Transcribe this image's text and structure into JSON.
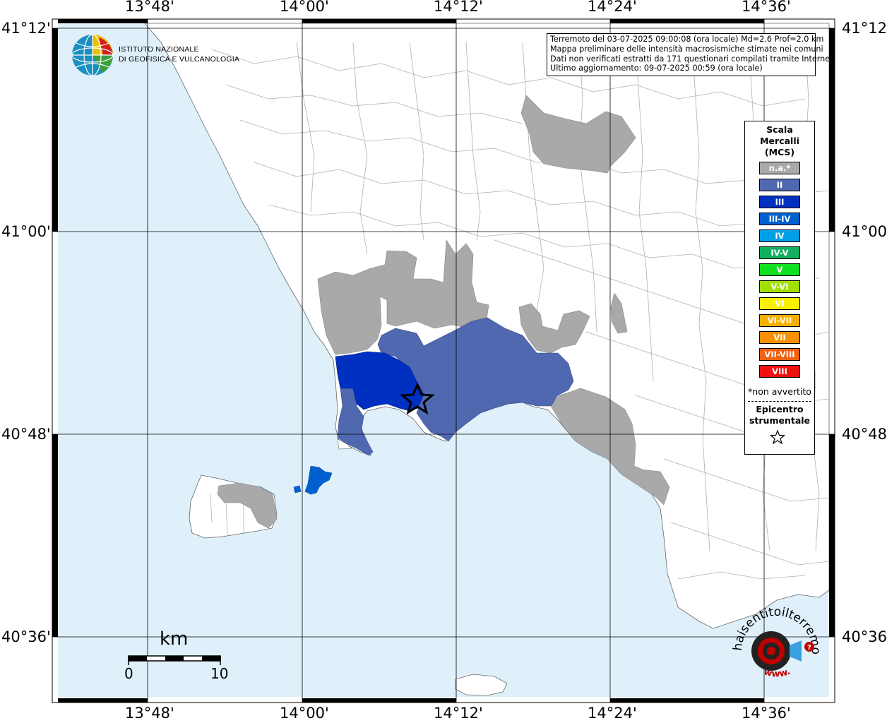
{
  "map": {
    "lon_labels": [
      "13°48'",
      "14°00'",
      "14°12'",
      "14°24'",
      "14°36'"
    ],
    "lat_labels": [
      "41°12'",
      "41°00'",
      "40°48'",
      "40°36'"
    ]
  },
  "info": {
    "line1": "Terremoto del 03-07-2025 09:00:08 (ora locale) Md=2.6 Prof=2.0 km",
    "line2": "Mappa preliminare delle intensità macrosismiche stimate nei comuni",
    "line3": "Dati non verificati estratti da 171 questionari compilati tramite Internet.",
    "line4": "Ultimo aggiornamento: 09-07-2025 00:59 (ora locale)"
  },
  "logo": {
    "line1": "ISTITUTO NAZIONALE",
    "line2": "DI GEOFISICA E VULCANOLOGIA"
  },
  "legend": {
    "title1": "Scala",
    "title2": "Mercalli",
    "title3": "(MCS)",
    "items": [
      {
        "label": "n.a.*",
        "color": "#a9a9a9"
      },
      {
        "label": "II",
        "color": "#5068b0"
      },
      {
        "label": "III",
        "color": "#0030c0"
      },
      {
        "label": "III-IV",
        "color": "#0060d0"
      },
      {
        "label": "IV",
        "color": "#00a0e8"
      },
      {
        "label": "IV-V",
        "color": "#10b060"
      },
      {
        "label": "V",
        "color": "#10e020"
      },
      {
        "label": "V-VI",
        "color": "#a0e000"
      },
      {
        "label": "VI",
        "color": "#f8f000"
      },
      {
        "label": "VI-VII",
        "color": "#f8b000"
      },
      {
        "label": "VII",
        "color": "#f89000"
      },
      {
        "label": "VII-VIII",
        "color": "#f06010"
      },
      {
        "label": "VIII",
        "color": "#f01010"
      }
    ],
    "note": "*non avvertito",
    "epi1": "Epicentro",
    "epi2": "strumentale"
  },
  "scale": {
    "unit": "km",
    "min": "0",
    "max": "10"
  },
  "brand": {
    "text": "haisentitoilterremoto.it",
    "www": "www."
  },
  "colors": {
    "sea": "#dff0fb",
    "land": "#ffffff",
    "na": "#a9a9a9",
    "II": "#5068b0",
    "III": "#0030c0",
    "III-IV": "#0060d0"
  }
}
